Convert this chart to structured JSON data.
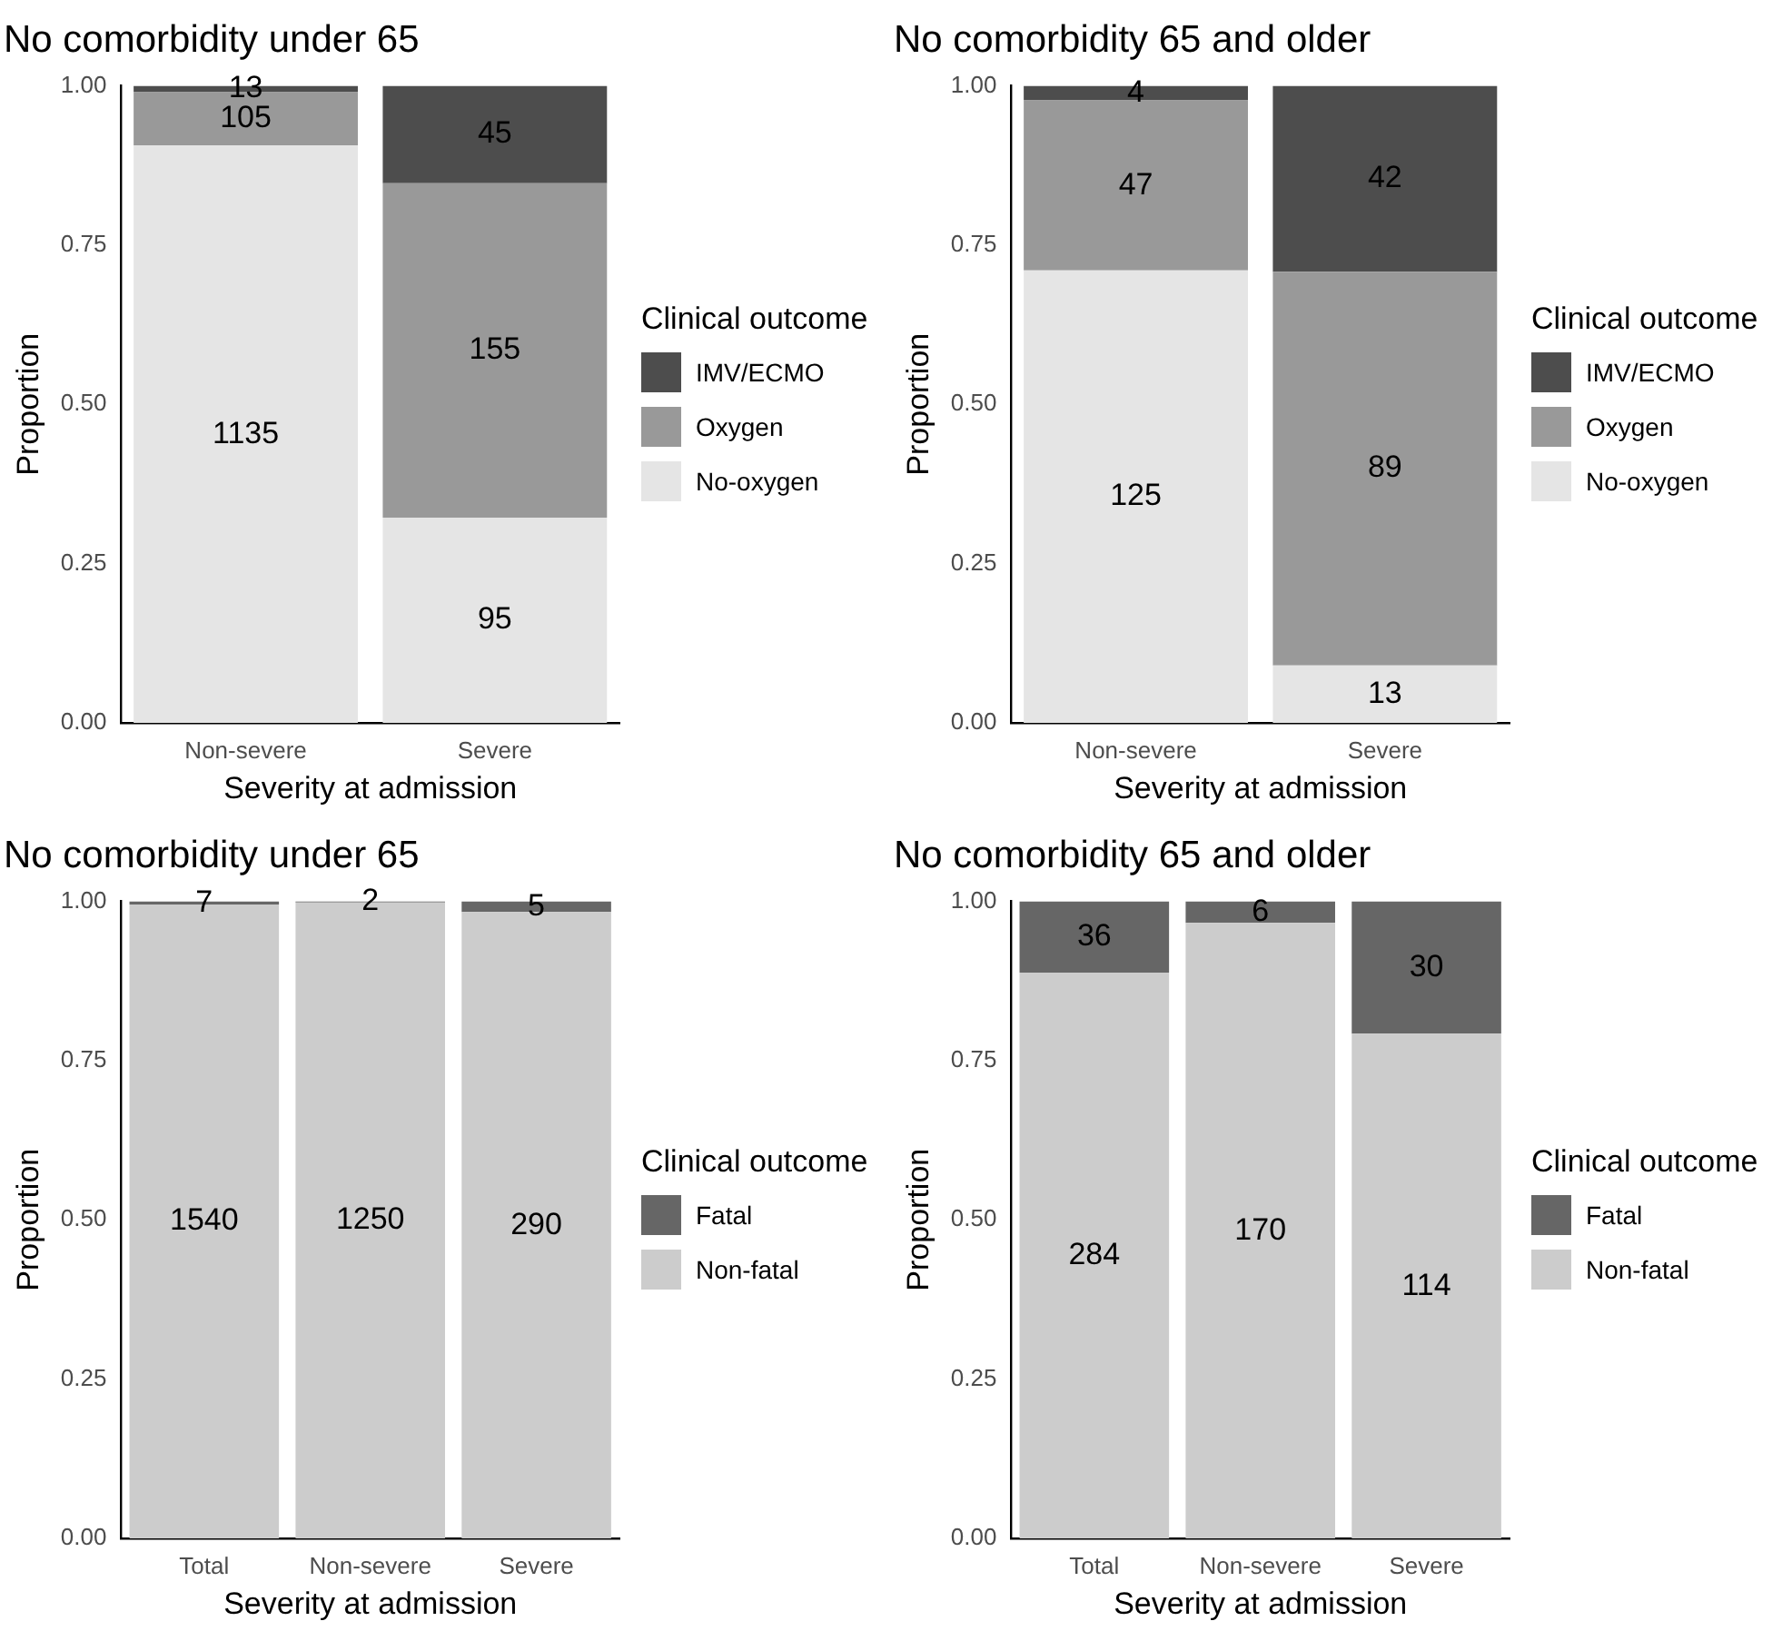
{
  "chart_data": [
    {
      "type": "bar",
      "title": "No comorbidity under 65",
      "xlabel": "Severity at admission",
      "ylabel": "Proportion",
      "legend_title": "Clinical outcome",
      "categories": [
        "Non-severe",
        "Severe"
      ],
      "stacked": true,
      "legend": "right",
      "grid": false,
      "ylim": [
        0,
        1
      ],
      "yticks": [
        {
          "value": 0,
          "label": "0.00"
        },
        {
          "value": 0.25,
          "label": "0.25"
        },
        {
          "value": 0.5,
          "label": "0.50"
        },
        {
          "value": 0.75,
          "label": "0.75"
        },
        {
          "value": 1,
          "label": "1.00"
        }
      ],
      "series": [
        {
          "name": "No-oxygen",
          "color": "#e5e5e5",
          "values": [
            0.906,
            0.322
          ]
        },
        {
          "name": "Oxygen",
          "color": "#999999",
          "values": [
            0.084,
            0.525
          ]
        },
        {
          "name": "IMV/ECMO",
          "color": "#4d4d4d",
          "values": [
            0.01,
            0.153
          ]
        }
      ],
      "annotations": [
        "1135",
        "105",
        "13",
        "95",
        "155",
        "45"
      ]
    },
    {
      "type": "bar",
      "title": "No comorbidity 65 and older",
      "xlabel": "Severity at admission",
      "ylabel": "Proportion",
      "legend_title": "Clinical outcome",
      "categories": [
        "Non-severe",
        "Severe"
      ],
      "stacked": true,
      "legend": "right",
      "grid": false,
      "ylim": [
        0,
        1
      ],
      "yticks": [
        {
          "value": 0,
          "label": "0.00"
        },
        {
          "value": 0.25,
          "label": "0.25"
        },
        {
          "value": 0.5,
          "label": "0.50"
        },
        {
          "value": 0.75,
          "label": "0.75"
        },
        {
          "value": 1,
          "label": "1.00"
        }
      ],
      "series": [
        {
          "name": "No-oxygen",
          "color": "#e5e5e5",
          "values": [
            0.71,
            0.09
          ]
        },
        {
          "name": "Oxygen",
          "color": "#999999",
          "values": [
            0.267,
            0.618
          ]
        },
        {
          "name": "IMV/ECMO",
          "color": "#4d4d4d",
          "values": [
            0.023,
            0.292
          ]
        }
      ],
      "annotations": [
        "125",
        "47",
        "4",
        "13",
        "89",
        "42"
      ]
    },
    {
      "type": "bar",
      "title": "No comorbidity under 65",
      "xlabel": "Severity at admission",
      "ylabel": "Proportion",
      "legend_title": "Clinical outcome",
      "categories": [
        "Total",
        "Non-severe",
        "Severe"
      ],
      "stacked": true,
      "legend": "right",
      "grid": false,
      "ylim": [
        0,
        1
      ],
      "yticks": [
        {
          "value": 0,
          "label": "0.00"
        },
        {
          "value": 0.25,
          "label": "0.25"
        },
        {
          "value": 0.5,
          "label": "0.50"
        },
        {
          "value": 0.75,
          "label": "0.75"
        },
        {
          "value": 1,
          "label": "1.00"
        }
      ],
      "series": [
        {
          "name": "Non-fatal",
          "color": "#cccccc",
          "values": [
            0.995,
            0.998,
            0.983
          ]
        },
        {
          "name": "Fatal",
          "color": "#666666",
          "values": [
            0.005,
            0.002,
            0.017
          ]
        }
      ],
      "annotations": [
        "1540",
        "7",
        "1250",
        "2",
        "290",
        "5"
      ]
    },
    {
      "type": "bar",
      "title": "No comorbidity 65 and older",
      "xlabel": "Severity at admission",
      "ylabel": "Proportion",
      "legend_title": "Clinical outcome",
      "categories": [
        "Total",
        "Non-severe",
        "Severe"
      ],
      "stacked": true,
      "legend": "right",
      "grid": false,
      "ylim": [
        0,
        1
      ],
      "yticks": [
        {
          "value": 0,
          "label": "0.00"
        },
        {
          "value": 0.25,
          "label": "0.25"
        },
        {
          "value": 0.5,
          "label": "0.50"
        },
        {
          "value": 0.75,
          "label": "0.75"
        },
        {
          "value": 1,
          "label": "1.00"
        }
      ],
      "series": [
        {
          "name": "Non-fatal",
          "color": "#cccccc",
          "values": [
            0.888,
            0.966,
            0.792
          ]
        },
        {
          "name": "Fatal",
          "color": "#666666",
          "values": [
            0.112,
            0.034,
            0.208
          ]
        }
      ],
      "annotations": [
        "284",
        "36",
        "170",
        "6",
        "114",
        "30"
      ]
    }
  ]
}
